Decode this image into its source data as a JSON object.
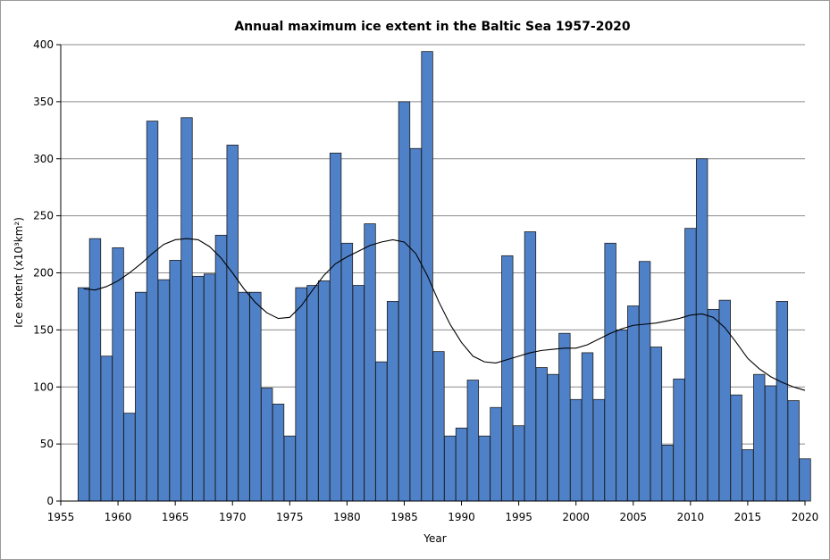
{
  "chart_data": {
    "type": "bar",
    "title": "Annual maximum ice extent in the Baltic Sea 1957-2020",
    "xlabel": "Year",
    "ylabel": "Ice extent (x10³km²)",
    "xlim": [
      1955,
      2020
    ],
    "ylim": [
      0,
      400
    ],
    "grid": true,
    "x_ticks": [
      1955,
      1960,
      1965,
      1970,
      1975,
      1980,
      1985,
      1990,
      1995,
      2000,
      2005,
      2010,
      2015,
      2020
    ],
    "y_ticks": [
      0,
      50,
      100,
      150,
      200,
      250,
      300,
      350,
      400
    ],
    "colors": {
      "bar_fill": "#4f81c9",
      "bar_stroke": "#1f1f1f",
      "grid": "#8c8c8c",
      "trend": "#000000"
    },
    "series": [
      {
        "name": "Annual maximum ice extent",
        "x": [
          1957,
          1958,
          1959,
          1960,
          1961,
          1962,
          1963,
          1964,
          1965,
          1966,
          1967,
          1968,
          1969,
          1970,
          1971,
          1972,
          1973,
          1974,
          1975,
          1976,
          1977,
          1978,
          1979,
          1980,
          1981,
          1982,
          1983,
          1984,
          1985,
          1986,
          1987,
          1988,
          1989,
          1990,
          1991,
          1992,
          1993,
          1994,
          1995,
          1996,
          1997,
          1998,
          1999,
          2000,
          2001,
          2002,
          2003,
          2004,
          2005,
          2006,
          2007,
          2008,
          2009,
          2010,
          2011,
          2012,
          2013,
          2014,
          2015,
          2016,
          2017,
          2018,
          2019,
          2020
        ],
        "values": [
          187,
          230,
          127,
          222,
          77,
          183,
          333,
          194,
          211,
          336,
          197,
          199,
          233,
          312,
          183,
          183,
          99,
          85,
          57,
          187,
          189,
          193,
          305,
          226,
          189,
          243,
          122,
          175,
          350,
          309,
          394,
          131,
          57,
          64,
          106,
          57,
          82,
          215,
          66,
          236,
          117,
          111,
          147,
          89,
          130,
          89,
          226,
          150,
          171,
          210,
          135,
          49,
          107,
          239,
          300,
          168,
          176,
          93,
          45,
          111,
          101,
          175,
          88,
          37
        ]
      },
      {
        "name": "Trend",
        "type": "line",
        "x": [
          1957,
          1958,
          1959,
          1960,
          1961,
          1962,
          1963,
          1964,
          1965,
          1966,
          1967,
          1968,
          1969,
          1970,
          1971,
          1972,
          1973,
          1974,
          1975,
          1976,
          1977,
          1978,
          1979,
          1980,
          1981,
          1982,
          1983,
          1984,
          1985,
          1986,
          1987,
          1988,
          1989,
          1990,
          1991,
          1992,
          1993,
          1994,
          1995,
          1996,
          1997,
          1998,
          1999,
          2000,
          2001,
          2002,
          2003,
          2004,
          2005,
          2006,
          2007,
          2008,
          2009,
          2010,
          2011,
          2012,
          2013,
          2014,
          2015,
          2016,
          2017,
          2018,
          2019,
          2020
        ],
        "values": [
          186,
          185,
          188,
          193,
          200,
          208,
          217,
          225,
          229,
          230,
          229,
          223,
          213,
          200,
          186,
          174,
          165,
          160,
          161,
          171,
          185,
          198,
          208,
          214,
          219,
          224,
          227,
          229,
          227,
          217,
          198,
          175,
          155,
          139,
          127,
          122,
          121,
          124,
          127,
          130,
          132,
          133,
          134,
          134,
          137,
          142,
          147,
          151,
          154,
          155,
          156,
          158,
          160,
          163,
          164,
          161,
          152,
          139,
          125,
          116,
          109,
          104,
          100,
          97
        ]
      }
    ]
  }
}
